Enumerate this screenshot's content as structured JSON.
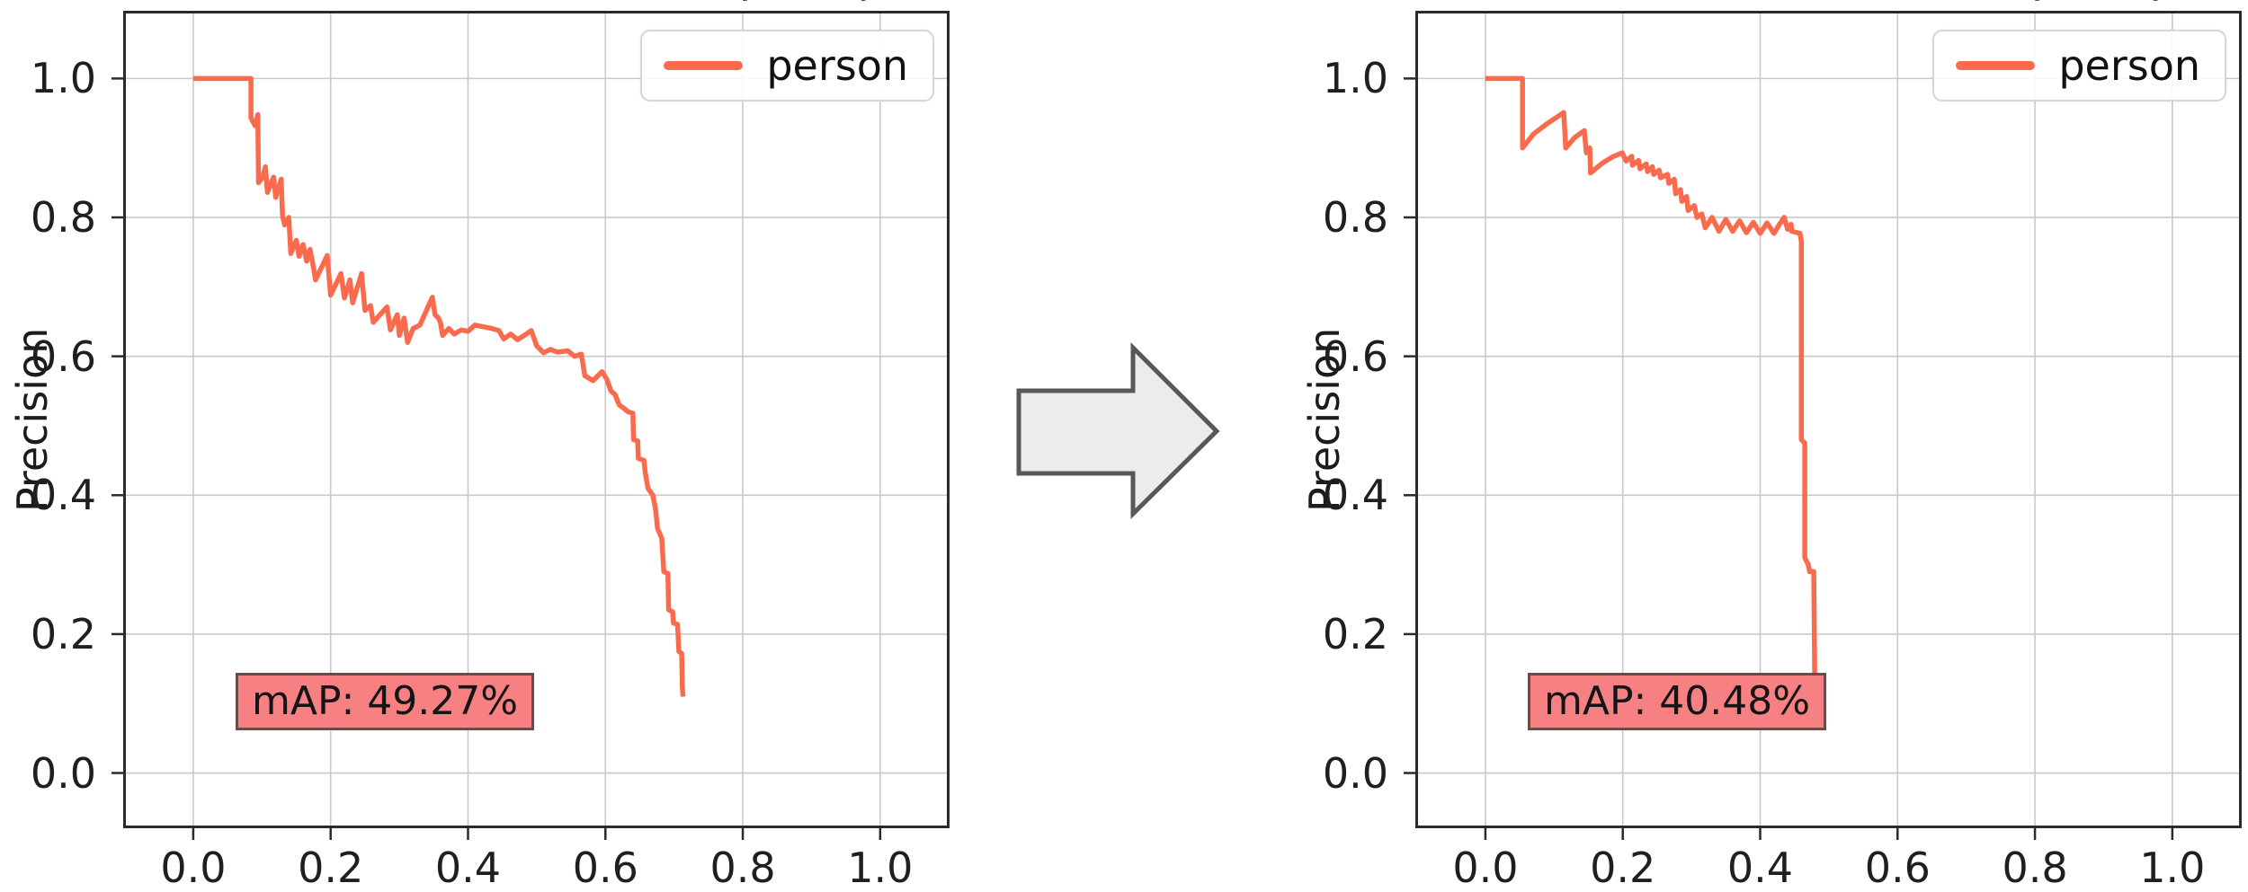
{
  "page": {
    "background": "#ffffff"
  },
  "arrow": {
    "shape": "right-arrow",
    "fill": "#ececec",
    "stroke": "#58585a"
  },
  "style": {
    "grid_color": "#c9c9c9",
    "spine_color": "#2b2b2b",
    "plot_bg": "#ffffff",
    "annotation_bg": "#f78082",
    "annotation_border": "#6e4b4b",
    "curve_color": "#fa6a4d"
  },
  "chart_data": [
    {
      "type": "line",
      "title_fragments": [
        "(",
        ")"
      ],
      "ylabel": "Precision",
      "legend": [
        "person"
      ],
      "legend_position": "upper right",
      "annotation": "mAP: 49.27%",
      "grid": true,
      "x_tick_labels": [
        "0.0",
        "0.2",
        "0.4",
        "0.6",
        "0.8",
        "1.0"
      ],
      "y_tick_labels": [
        "0.0",
        "0.2",
        "0.4",
        "0.6",
        "0.8",
        "1.0"
      ],
      "xlim": [
        -0.102,
        1.101
      ],
      "ylim": [
        -0.0795,
        1.0975
      ],
      "series": [
        {
          "name": "person",
          "color": "#fa6a4d",
          "points": [
            [
              0.0,
              1.0
            ],
            [
              0.084,
              1.0
            ],
            [
              0.084,
              0.943
            ],
            [
              0.09,
              0.932
            ],
            [
              0.094,
              0.948
            ],
            [
              0.095,
              0.85
            ],
            [
              0.101,
              0.858
            ],
            [
              0.105,
              0.873
            ],
            [
              0.108,
              0.836
            ],
            [
              0.117,
              0.858
            ],
            [
              0.12,
              0.829
            ],
            [
              0.128,
              0.855
            ],
            [
              0.13,
              0.802
            ],
            [
              0.133,
              0.789
            ],
            [
              0.139,
              0.8
            ],
            [
              0.142,
              0.748
            ],
            [
              0.15,
              0.767
            ],
            [
              0.154,
              0.744
            ],
            [
              0.16,
              0.761
            ],
            [
              0.165,
              0.737
            ],
            [
              0.17,
              0.754
            ],
            [
              0.175,
              0.728
            ],
            [
              0.178,
              0.71
            ],
            [
              0.195,
              0.745
            ],
            [
              0.2,
              0.688
            ],
            [
              0.215,
              0.719
            ],
            [
              0.22,
              0.684
            ],
            [
              0.228,
              0.71
            ],
            [
              0.232,
              0.677
            ],
            [
              0.245,
              0.719
            ],
            [
              0.25,
              0.666
            ],
            [
              0.258,
              0.673
            ],
            [
              0.262,
              0.649
            ],
            [
              0.282,
              0.671
            ],
            [
              0.287,
              0.638
            ],
            [
              0.297,
              0.66
            ],
            [
              0.3,
              0.63
            ],
            [
              0.307,
              0.655
            ],
            [
              0.312,
              0.62
            ],
            [
              0.32,
              0.64
            ],
            [
              0.33,
              0.645
            ],
            [
              0.348,
              0.685
            ],
            [
              0.352,
              0.66
            ],
            [
              0.357,
              0.655
            ],
            [
              0.36,
              0.648
            ],
            [
              0.363,
              0.63
            ],
            [
              0.372,
              0.64
            ],
            [
              0.38,
              0.632
            ],
            [
              0.39,
              0.638
            ],
            [
              0.4,
              0.636
            ],
            [
              0.41,
              0.645
            ],
            [
              0.42,
              0.643
            ],
            [
              0.435,
              0.64
            ],
            [
              0.445,
              0.637
            ],
            [
              0.452,
              0.625
            ],
            [
              0.462,
              0.632
            ],
            [
              0.472,
              0.624
            ],
            [
              0.482,
              0.63
            ],
            [
              0.492,
              0.637
            ],
            [
              0.5,
              0.615
            ],
            [
              0.51,
              0.605
            ],
            [
              0.52,
              0.61
            ],
            [
              0.53,
              0.606
            ],
            [
              0.545,
              0.608
            ],
            [
              0.555,
              0.6
            ],
            [
              0.565,
              0.603
            ],
            [
              0.57,
              0.572
            ],
            [
              0.582,
              0.565
            ],
            [
              0.595,
              0.578
            ],
            [
              0.602,
              0.567
            ],
            [
              0.608,
              0.55
            ],
            [
              0.614,
              0.545
            ],
            [
              0.62,
              0.53
            ],
            [
              0.627,
              0.525
            ],
            [
              0.633,
              0.52
            ],
            [
              0.64,
              0.518
            ],
            [
              0.641,
              0.48
            ],
            [
              0.647,
              0.478
            ],
            [
              0.648,
              0.453
            ],
            [
              0.656,
              0.45
            ],
            [
              0.658,
              0.432
            ],
            [
              0.662,
              0.41
            ],
            [
              0.669,
              0.4
            ],
            [
              0.673,
              0.38
            ],
            [
              0.676,
              0.352
            ],
            [
              0.682,
              0.338
            ],
            [
              0.685,
              0.29
            ],
            [
              0.691,
              0.287
            ],
            [
              0.692,
              0.235
            ],
            [
              0.698,
              0.232
            ],
            [
              0.699,
              0.216
            ],
            [
              0.705,
              0.214
            ],
            [
              0.707,
              0.175
            ],
            [
              0.711,
              0.172
            ],
            [
              0.712,
              0.125
            ],
            [
              0.713,
              0.11
            ]
          ]
        }
      ]
    },
    {
      "type": "line",
      "title_fragments": [
        "(",
        ")"
      ],
      "ylabel": "Precision",
      "legend": [
        "person"
      ],
      "legend_position": "upper right",
      "annotation": "mAP: 40.48%",
      "grid": true,
      "x_tick_labels": [
        "0.0",
        "0.2",
        "0.4",
        "0.6",
        "0.8",
        "1.0"
      ],
      "y_tick_labels": [
        "0.0",
        "0.2",
        "0.4",
        "0.6",
        "0.8",
        "1.0"
      ],
      "xlim": [
        -0.102,
        1.101
      ],
      "ylim": [
        -0.0795,
        1.0975
      ],
      "series": [
        {
          "name": "person",
          "color": "#fa6a4d",
          "points": [
            [
              0.0,
              1.0
            ],
            [
              0.054,
              1.0
            ],
            [
              0.054,
              0.9
            ],
            [
              0.07,
              0.92
            ],
            [
              0.09,
              0.935
            ],
            [
              0.105,
              0.945
            ],
            [
              0.114,
              0.951
            ],
            [
              0.117,
              0.9
            ],
            [
              0.13,
              0.915
            ],
            [
              0.144,
              0.925
            ],
            [
              0.147,
              0.893
            ],
            [
              0.152,
              0.9
            ],
            [
              0.153,
              0.864
            ],
            [
              0.17,
              0.878
            ],
            [
              0.185,
              0.887
            ],
            [
              0.199,
              0.893
            ],
            [
              0.205,
              0.881
            ],
            [
              0.213,
              0.888
            ],
            [
              0.214,
              0.875
            ],
            [
              0.223,
              0.882
            ],
            [
              0.225,
              0.87
            ],
            [
              0.234,
              0.877
            ],
            [
              0.236,
              0.866
            ],
            [
              0.243,
              0.873
            ],
            [
              0.245,
              0.862
            ],
            [
              0.253,
              0.868
            ],
            [
              0.255,
              0.857
            ],
            [
              0.265,
              0.862
            ],
            [
              0.267,
              0.849
            ],
            [
              0.275,
              0.855
            ],
            [
              0.277,
              0.834
            ],
            [
              0.284,
              0.84
            ],
            [
              0.286,
              0.823
            ],
            [
              0.293,
              0.83
            ],
            [
              0.295,
              0.81
            ],
            [
              0.304,
              0.817
            ],
            [
              0.308,
              0.8
            ],
            [
              0.315,
              0.805
            ],
            [
              0.32,
              0.785
            ],
            [
              0.33,
              0.8
            ],
            [
              0.34,
              0.78
            ],
            [
              0.35,
              0.797
            ],
            [
              0.36,
              0.78
            ],
            [
              0.37,
              0.795
            ],
            [
              0.38,
              0.778
            ],
            [
              0.39,
              0.793
            ],
            [
              0.4,
              0.777
            ],
            [
              0.41,
              0.792
            ],
            [
              0.42,
              0.777
            ],
            [
              0.428,
              0.79
            ],
            [
              0.435,
              0.8
            ],
            [
              0.44,
              0.783
            ],
            [
              0.445,
              0.79
            ],
            [
              0.446,
              0.78
            ],
            [
              0.458,
              0.777
            ],
            [
              0.46,
              0.765
            ],
            [
              0.46,
              0.48
            ],
            [
              0.465,
              0.475
            ],
            [
              0.465,
              0.31
            ],
            [
              0.47,
              0.3
            ],
            [
              0.472,
              0.29
            ],
            [
              0.478,
              0.29
            ],
            [
              0.48,
              0.07
            ],
            [
              0.484,
              0.068
            ]
          ]
        }
      ]
    }
  ]
}
